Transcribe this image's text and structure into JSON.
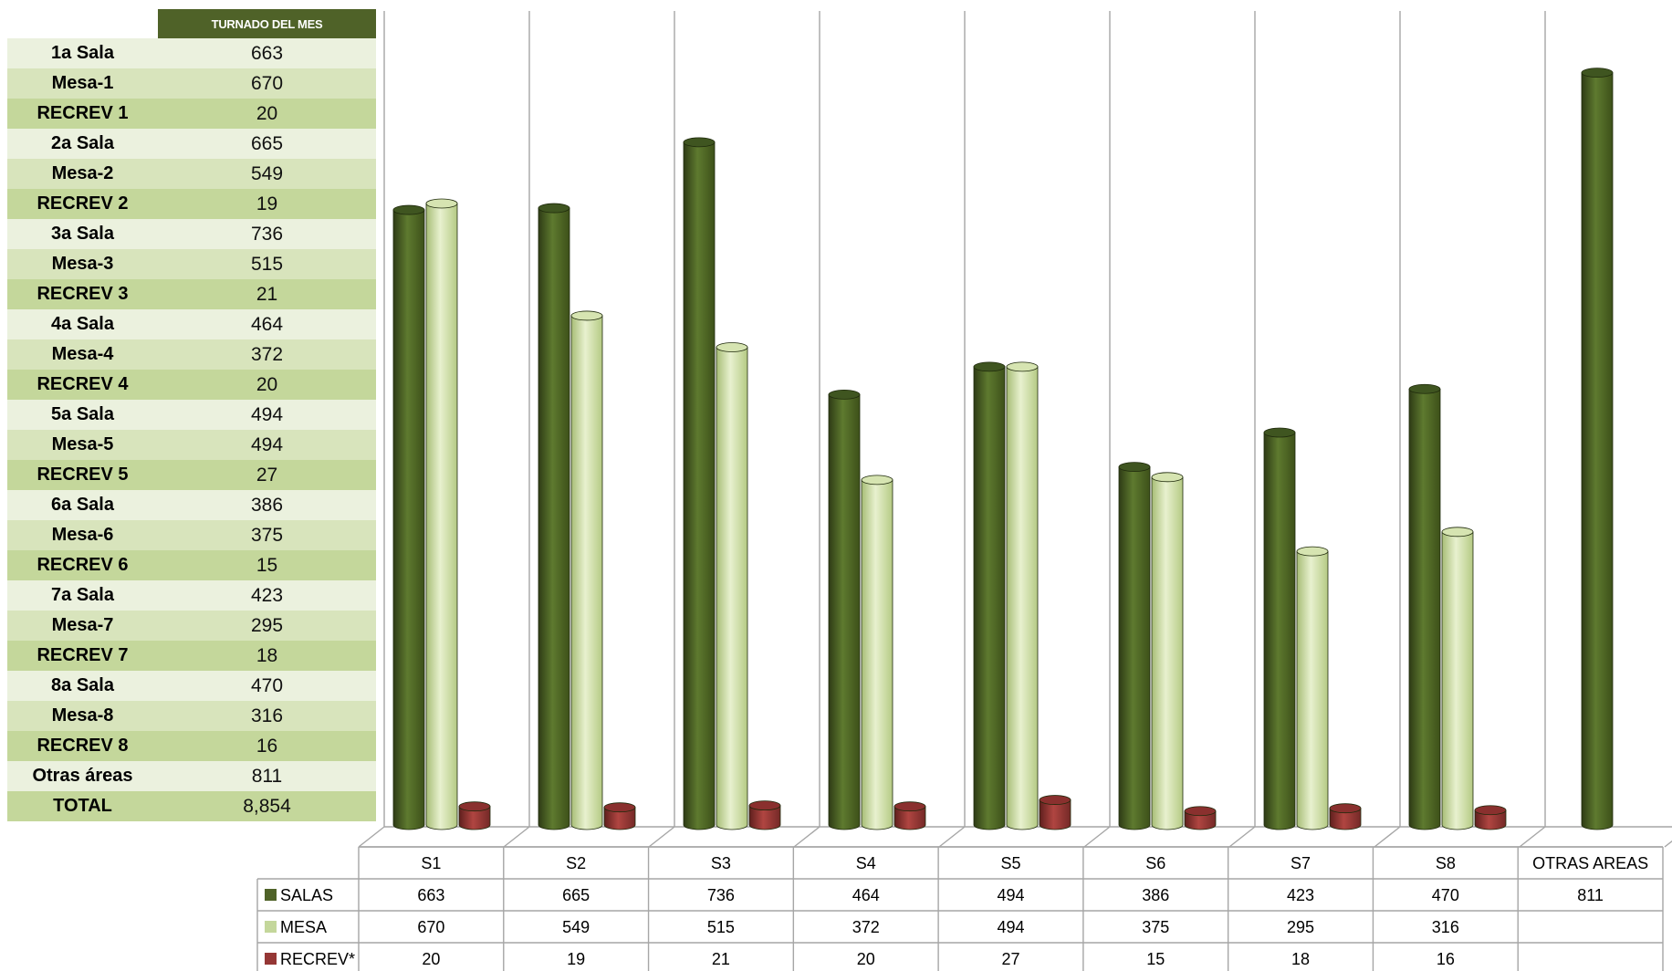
{
  "summary_table": {
    "header": "TURNADO DEL MES",
    "rows": [
      {
        "label": "1a Sala",
        "value": "663"
      },
      {
        "label": "Mesa-1",
        "value": "670"
      },
      {
        "label": "RECREV 1",
        "value": "20"
      },
      {
        "label": "2a Sala",
        "value": "665"
      },
      {
        "label": "Mesa-2",
        "value": "549"
      },
      {
        "label": "RECREV 2",
        "value": "19"
      },
      {
        "label": "3a Sala",
        "value": "736"
      },
      {
        "label": "Mesa-3",
        "value": "515"
      },
      {
        "label": "RECREV 3",
        "value": "21"
      },
      {
        "label": "4a Sala",
        "value": "464"
      },
      {
        "label": "Mesa-4",
        "value": "372"
      },
      {
        "label": "RECREV 4",
        "value": "20"
      },
      {
        "label": "5a Sala",
        "value": "494"
      },
      {
        "label": "Mesa-5",
        "value": "494"
      },
      {
        "label": "RECREV 5",
        "value": "27"
      },
      {
        "label": "6a Sala",
        "value": "386"
      },
      {
        "label": "Mesa-6",
        "value": "375"
      },
      {
        "label": "RECREV 6",
        "value": "15"
      },
      {
        "label": "7a Sala",
        "value": "423"
      },
      {
        "label": "Mesa-7",
        "value": "295"
      },
      {
        "label": "RECREV 7",
        "value": "18"
      },
      {
        "label": "8a Sala",
        "value": "470"
      },
      {
        "label": "Mesa-8",
        "value": "316"
      },
      {
        "label": "RECREV 8",
        "value": "16"
      },
      {
        "label": "Otras áreas",
        "value": "811"
      },
      {
        "label": "TOTAL",
        "value": "8,854"
      }
    ]
  },
  "colors": {
    "salas": "#4f6228",
    "mesa": "#c4d79b",
    "recrev": "#953735",
    "header": "#4f6228",
    "row_light": "#ebf1de",
    "row_mid": "#d8e4bc",
    "row_dark": "#c4d79b"
  },
  "chart_data": {
    "type": "bar",
    "style": "3d-cylinder",
    "categories": [
      "S1",
      "S2",
      "S3",
      "S4",
      "S5",
      "S6",
      "S7",
      "S8",
      "OTRAS AREAS"
    ],
    "series": [
      {
        "name": "SALAS",
        "color": "#4f6228",
        "values": [
          663,
          665,
          736,
          464,
          494,
          386,
          423,
          470,
          811
        ]
      },
      {
        "name": "MESA",
        "color": "#c4d79b",
        "values": [
          670,
          549,
          515,
          372,
          494,
          375,
          295,
          316,
          null
        ]
      },
      {
        "name": "RECREV*",
        "color": "#953735",
        "values": [
          20,
          19,
          21,
          20,
          27,
          15,
          18,
          16,
          null
        ]
      }
    ],
    "ylim": [
      0,
      850
    ],
    "grid": "vertical",
    "legend": "data-table-bottom",
    "title": "",
    "xlabel": "",
    "ylabel": ""
  }
}
